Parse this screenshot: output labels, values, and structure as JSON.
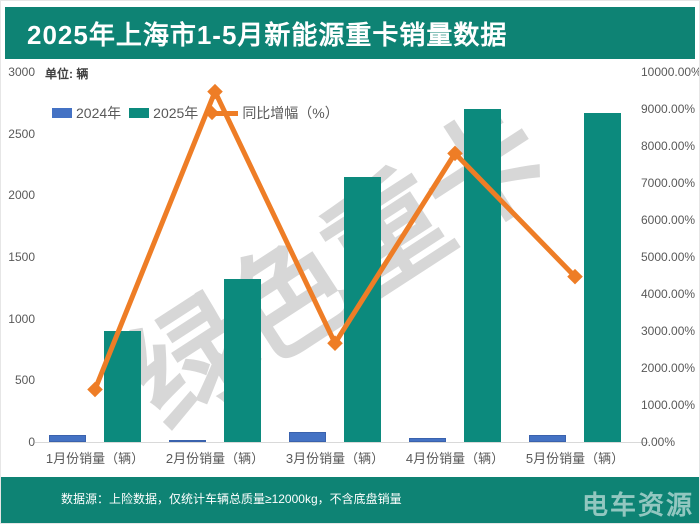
{
  "header": {
    "title": "2025年上海市1-5月新能源重卡销量数据",
    "bg_color": "#0e8374"
  },
  "watermark": {
    "text": "绿色重卡"
  },
  "footer": {
    "source_note": "数据源：上险数据，仅统计车辆总质量≥12000kg，不含底盘销量",
    "logo": "电车资源",
    "bg_color": "#0e8374"
  },
  "chart_data": {
    "type": "bar+line",
    "title": "2025年上海市1-5月新能源重卡销量数据",
    "unit_note": "单位: 辆",
    "categories": [
      "1月份销量（辆）",
      "2月份销量（辆）",
      "3月份销量（辆）",
      "4月份销量（辆）",
      "5月份销量（辆）"
    ],
    "series": [
      {
        "name": "2024年",
        "type": "bar",
        "axis": "left",
        "color": "#4472c4",
        "border_color": "#3a62ad",
        "values": [
          60,
          14,
          78,
          34,
          59
        ]
      },
      {
        "name": "2025年",
        "type": "bar",
        "axis": "left",
        "color": "#0c8a7d",
        "values": [
          900,
          1320,
          2150,
          2700,
          2670
        ]
      },
      {
        "name": "同比增幅（%）",
        "type": "line",
        "axis": "right",
        "color": "#ee7d26",
        "marker": "diamond",
        "values": [
          1420,
          9470,
          2670,
          7800,
          4470
        ]
      }
    ],
    "left_axis": {
      "min": 0,
      "max": 3000,
      "step": 500,
      "tick_labels": [
        "3000",
        "2500",
        "2000",
        "1500",
        "1000",
        "500",
        "0"
      ]
    },
    "right_axis": {
      "min": 0,
      "max": 10000,
      "step": 1000,
      "suffix": "%",
      "tick_labels": [
        "10000.00%",
        "9000.00%",
        "8000.00%",
        "7000.00%",
        "6000.00%",
        "5000.00%",
        "4000.00%",
        "3000.00%",
        "2000.00%",
        "1000.00%",
        "0.00%"
      ]
    },
    "legend_position": "top-left",
    "grid": false
  }
}
